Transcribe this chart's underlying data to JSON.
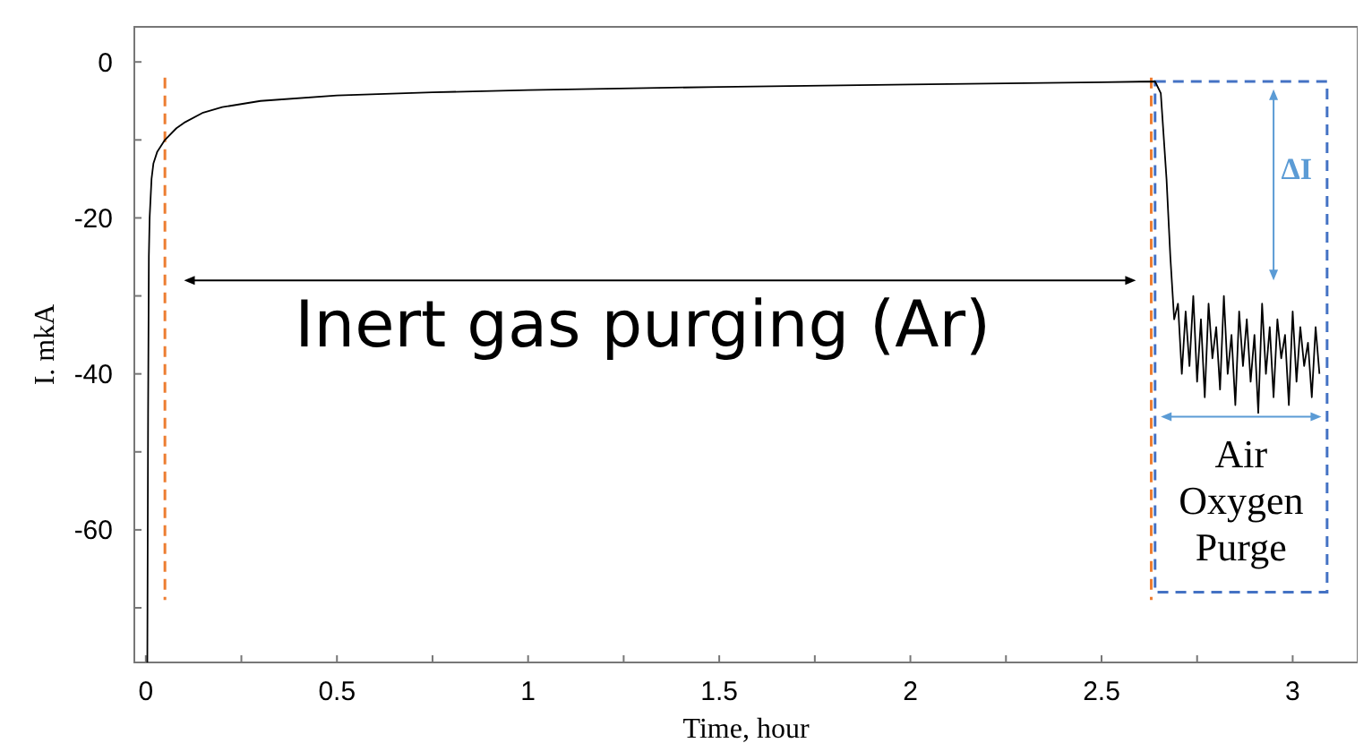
{
  "chart_data": {
    "type": "line",
    "xlabel": "Time, hour",
    "ylabel": "I. mkA",
    "xlim": [
      -0.03,
      3.17
    ],
    "ylim": [
      -77,
      4.5
    ],
    "xticks": [
      0,
      {
        "value": 0.25,
        "label": null
      },
      0.5,
      {
        "value": 0.75,
        "label": null
      },
      1,
      {
        "value": 1.25,
        "label": null
      },
      1.5,
      {
        "value": 1.75,
        "label": null
      },
      2,
      {
        "value": 2.25,
        "label": null
      },
      2.5,
      {
        "value": 2.75,
        "label": null
      },
      3
    ],
    "yticks": [
      {
        "value": -70,
        "label": null
      },
      -60,
      {
        "value": -50,
        "label": null
      },
      -40,
      {
        "value": -30,
        "label": null
      },
      -20,
      {
        "value": -10,
        "label": null
      },
      0
    ],
    "grid": false,
    "line_style": "solid",
    "series": [
      {
        "color": "#000000",
        "x": [
          0.004,
          0.006,
          0.008,
          0.01,
          0.015,
          0.02,
          0.03,
          0.05,
          0.08,
          0.1,
          0.15,
          0.2,
          0.3,
          0.5,
          0.75,
          1,
          1.5,
          2,
          2.5,
          2.64,
          2.655,
          2.67,
          2.68,
          2.69,
          2.7,
          2.71,
          2.72,
          2.73,
          2.74,
          2.75,
          2.76,
          2.77,
          2.78,
          2.79,
          2.8,
          2.81,
          2.82,
          2.83,
          2.84,
          2.85,
          2.86,
          2.87,
          2.88,
          2.89,
          2.9,
          2.91,
          2.92,
          2.93,
          2.94,
          2.95,
          2.96,
          2.97,
          2.98,
          2.99,
          3.0,
          3.01,
          3.02,
          3.03,
          3.04,
          3.05,
          3.06,
          3.07
        ],
        "values": [
          -77,
          -45,
          -25,
          -20,
          -15,
          -13,
          -11.5,
          -10,
          -8.5,
          -7.8,
          -6.5,
          -5.8,
          -5,
          -4.3,
          -3.9,
          -3.6,
          -3.2,
          -2.9,
          -2.6,
          -2.5,
          -4,
          -15,
          -25,
          -33,
          -31,
          -40,
          -32,
          -39,
          -30,
          -41,
          -33,
          -43,
          -31,
          -38,
          -34,
          -42,
          -30,
          -40,
          -35,
          -44,
          -32,
          -39,
          -33,
          -41,
          -35,
          -45,
          -31,
          -40,
          -34,
          -43,
          -33,
          -38,
          -35,
          -44,
          -32,
          -41,
          -34,
          -39,
          -36,
          -43,
          -34,
          -40
        ]
      }
    ],
    "ref_lines": [
      {
        "axis": "x",
        "value": 0.05,
        "color": "#ed7d31",
        "line_style": "dashed"
      },
      {
        "axis": "x",
        "value": 2.63,
        "color": "#ed7d31",
        "line_style": "dashed"
      }
    ],
    "annotations": [
      "Inert gas purging (Ar)",
      "ΔI",
      "Air Oxygen Purge"
    ]
  }
}
